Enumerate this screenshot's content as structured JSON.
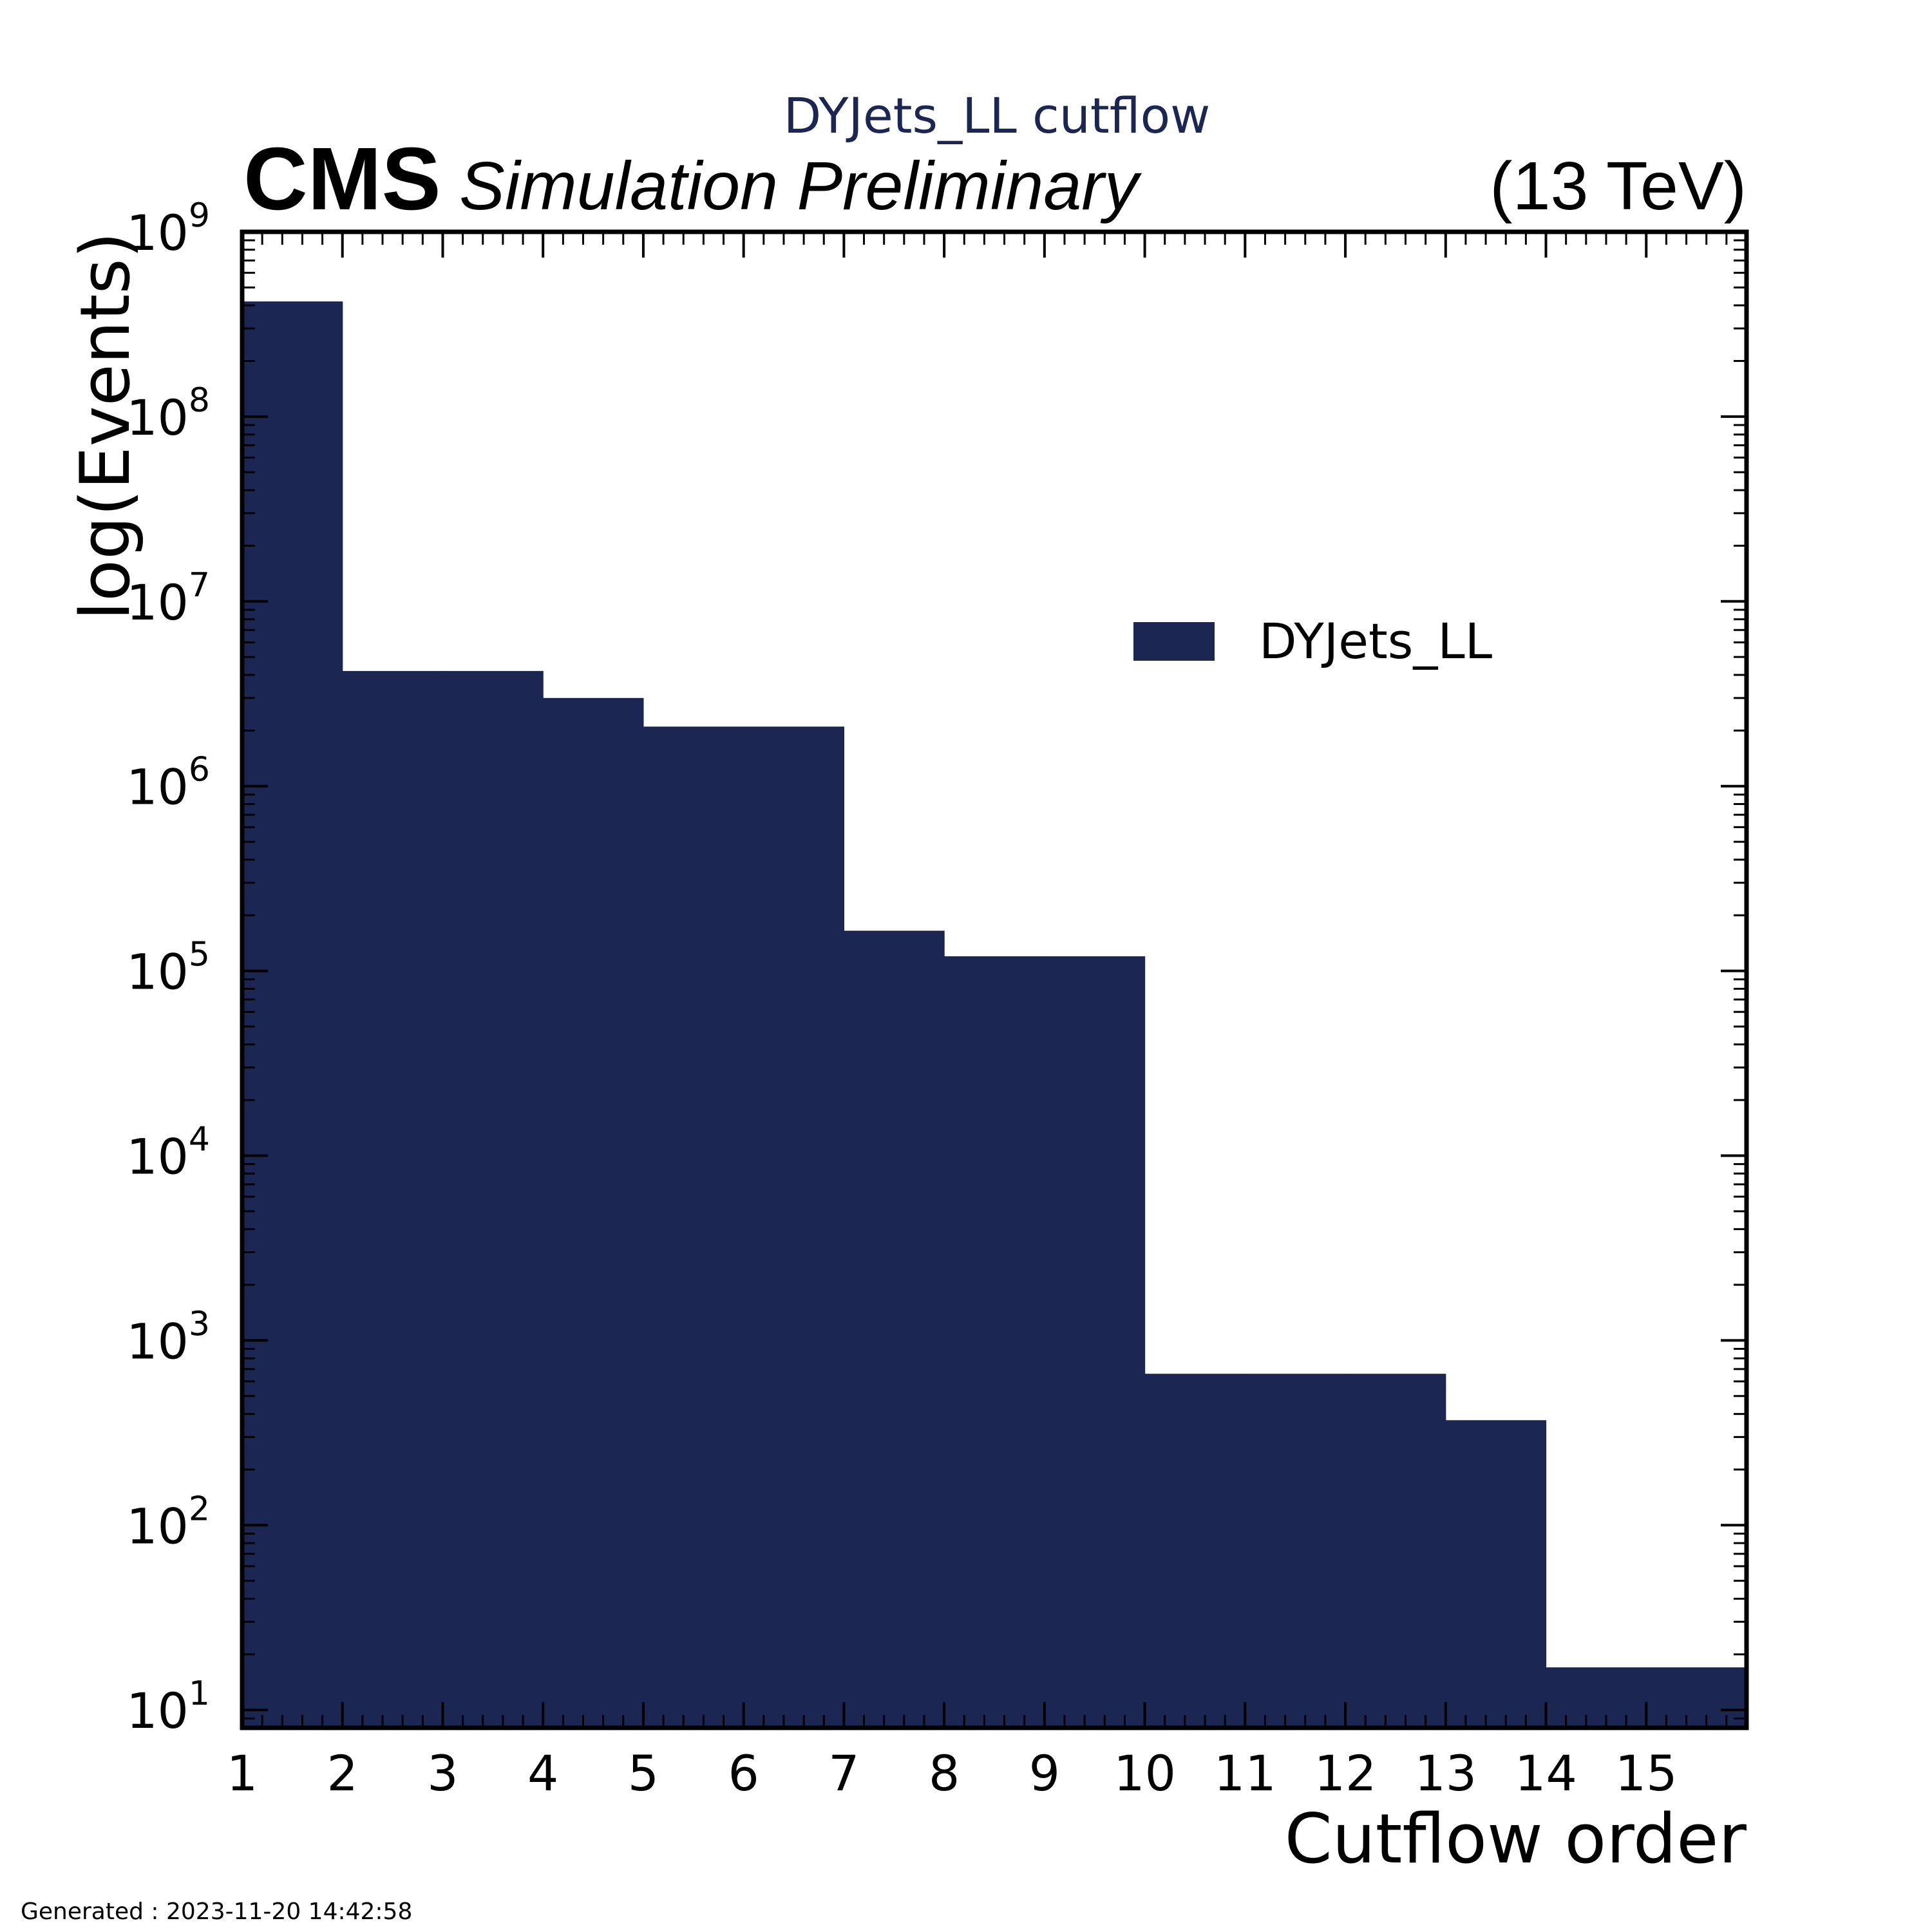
{
  "header": {
    "cms_label": "CMS",
    "status_label": "Simulation Preliminary",
    "energy_label": "(13 TeV)",
    "footer_text": "Generated : 2023-11-20 14:42:58"
  },
  "colors": {
    "bar_fill": "#1c2653",
    "axis": "#000000",
    "title": "#1c2653"
  },
  "chart_data": {
    "type": "bar",
    "title": "DYJets_LL cutflow",
    "xlabel": "Cutflow order",
    "ylabel": "log(Events)",
    "yscale": "log",
    "xlim": [
      1,
      16
    ],
    "ylim": [
      8,
      1000000000
    ],
    "x_ticks": [
      "1",
      "2",
      "3",
      "4",
      "5",
      "6",
      "7",
      "8",
      "9",
      "10",
      "11",
      "12",
      "13",
      "14",
      "15"
    ],
    "y_tick_decades": [
      1,
      2,
      3,
      4,
      5,
      6,
      7,
      8,
      9
    ],
    "legend": {
      "position": "upper-right",
      "entries": [
        "DYJets_LL"
      ]
    },
    "series": [
      {
        "name": "DYJets_LL",
        "bins": [
          {
            "lo": 1,
            "hi": 2,
            "value": 420000000
          },
          {
            "lo": 2,
            "hi": 3,
            "value": 4200000
          },
          {
            "lo": 3,
            "hi": 4,
            "value": 4200000
          },
          {
            "lo": 4,
            "hi": 5,
            "value": 3000000
          },
          {
            "lo": 5,
            "hi": 6,
            "value": 2100000
          },
          {
            "lo": 6,
            "hi": 7,
            "value": 2100000
          },
          {
            "lo": 7,
            "hi": 8,
            "value": 165000
          },
          {
            "lo": 8,
            "hi": 9,
            "value": 120000
          },
          {
            "lo": 9,
            "hi": 10,
            "value": 120000
          },
          {
            "lo": 10,
            "hi": 11,
            "value": 660
          },
          {
            "lo": 11,
            "hi": 12,
            "value": 660
          },
          {
            "lo": 12,
            "hi": 13,
            "value": 660
          },
          {
            "lo": 13,
            "hi": 14,
            "value": 370
          },
          {
            "lo": 14,
            "hi": 15,
            "value": 17
          },
          {
            "lo": 15,
            "hi": 16,
            "value": 17
          }
        ]
      }
    ]
  }
}
